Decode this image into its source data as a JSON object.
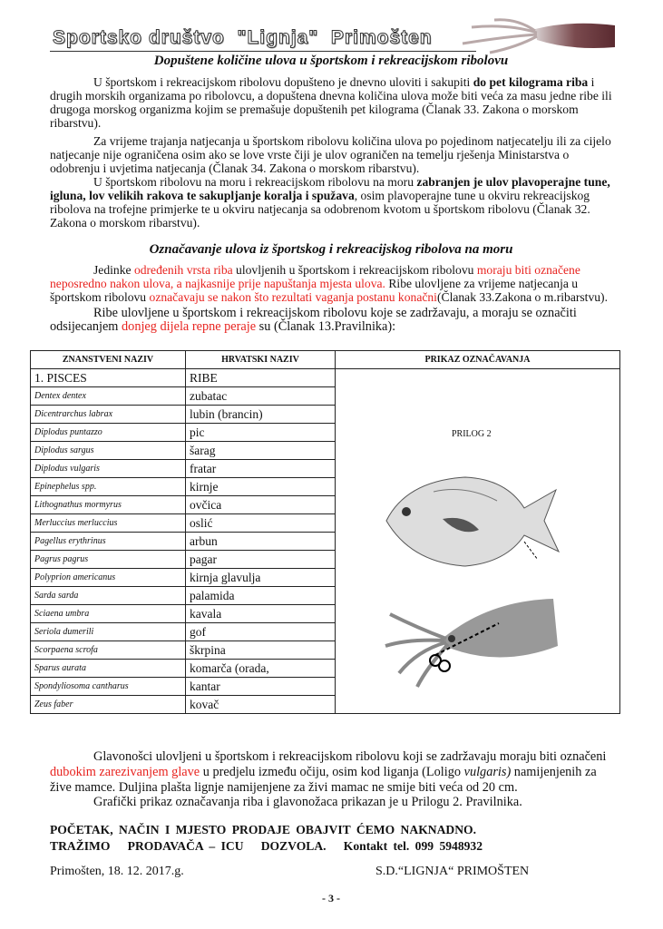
{
  "header": {
    "title": "Sportsko društvo  \"Lignja\"  Primošten",
    "logo": "squid-photo"
  },
  "section1": {
    "title": "Dopuštene količine ulova u športskom i rekreacijskom ribolovu"
  },
  "p1": [
    "U športskom i rekreacijskom ribolovu dopušteno je dnevno uloviti i sakupiti ",
    "do pet kilograma riba",
    " i drugih morskih organizama po ribolovcu, a dopuštena dnevna količina ulova može biti veća za masu jedne ribe ili drugoga morskog organizma kojim se premašuje dopuštenih pet kilograma (Članak 33. Zakona o morskom ribarstvu)."
  ],
  "p2": [
    "Za vrijeme trajanja natjecanja u športskom ribolovu količina ulova po pojedinom natjecatelju ili za cijelo natjecanje nije ograničena osim ako se love vrste čiji je ulov ograničen na temelju rješenja Ministarstva o odobrenju i uvjetima natjecanja (Članak 34. Zakona o morskom ribarstvu)."
  ],
  "p3": [
    "U športskom ribolovu na moru i rekreacijskom ribolovu na moru ",
    "zabranjen je ulov plavoperajne tune, igluna, lov velikih rakova te sakupljanje koralja i spužava",
    ", osim plavoperajne tune u okviru rekreacijskog ribolova na trofejne primjerke te u okviru natjecanja sa odobrenom kvotom u športskom ribolovu (Članak 32. Zakona o morskom ribarstvu)."
  ],
  "section2": {
    "title": "Označavanje ulova iz športskog i rekreacijskog ribolova na moru"
  },
  "p4": [
    "Jedinke ",
    "određenih vrsta riba",
    " ulovljenih u športskom i rekreacijskom ribolovu ",
    "moraju biti označene neposredno nakon ulova, a najkasnije prije napuštanja mjesta ulova.",
    " Ribe ulovljene za vrijeme natjecanja u športskom ribolovu ",
    "označavaju se nakon što rezultati vaganja postanu konačni",
    "(Članak 33.Zakona o m.ribarstvu)."
  ],
  "p5": [
    "Ribe ulovljene u športskom i rekreacijskom ribolovu koje se zadržavaju, a moraju se označiti odsijecanjem ",
    "donjeg dijela repne peraje",
    " su (Članak 13.Pravilnika):"
  ],
  "table": {
    "headers": [
      "ZNANSTVENI NAZIV",
      "HRVATSKI NAZIV",
      "PRIKAZ OZNAČAVANJA"
    ],
    "group": {
      "sci": "1. PISCES",
      "hr": "RIBE"
    },
    "rows": [
      {
        "sci": "Dentex dentex",
        "hr": "zubatac"
      },
      {
        "sci": "Dicentrarchus labrax",
        "hr": "lubin (brancin)"
      },
      {
        "sci": "Diplodus puntazzo",
        "hr": "pic"
      },
      {
        "sci": "Diplodus sargus",
        "hr": "šarag"
      },
      {
        "sci": "Diplodus vulgaris",
        "hr": "fratar"
      },
      {
        "sci": "Epinephelus spp.",
        "hr": "kirnje"
      },
      {
        "sci": "Lithognathus mormyrus",
        "hr": "ovčica"
      },
      {
        "sci": "Merluccius merluccius",
        "hr": "oslić"
      },
      {
        "sci": "Pagellus erythrinus",
        "hr": "arbun"
      },
      {
        "sci": "Pagrus pagrus",
        "hr": "pagar"
      },
      {
        "sci": "Polyprion americanus",
        "hr": "kirnja glavulja"
      },
      {
        "sci": "Sarda sarda",
        "hr": "palamida"
      },
      {
        "sci": "Sciaena umbra",
        "hr": "kavala"
      },
      {
        "sci": "Seriola dumerili",
        "hr": "gof"
      },
      {
        "sci": "Scorpaena scrofa",
        "hr": "škrpina"
      },
      {
        "sci": "Sparus aurata",
        "hr": "komarča (orada,"
      },
      {
        "sci": "Spondyliosoma cantharus",
        "hr": "kantar"
      },
      {
        "sci": "Zeus faber",
        "hr": "kovač"
      }
    ],
    "attachment_label": "PRILOG 2"
  },
  "p6": [
    "Glavonošci ulovljeni u športskom i rekreacijskom ribolovu koji se zadržavaju moraju biti označeni ",
    "dubokim zarezivanjem glave",
    " u predjelu između očiju, osim kod liganja (Loligo ",
    "vulgaris)",
    " namijenjenih za žive mamce. Duljina plašta lignje namijenjene za živi mamac ne smije biti veća od 20 cm."
  ],
  "p7": [
    "Grafički prikaz označavanja riba i glavonožaca prikazan je u Prilogu 2. Pravilnika."
  ],
  "notice": {
    "line1": "POČETAK, NAČIN I MJESTO PRODAJE OBAJVIT ĆEMO NAKNADNO.",
    "line2": "TRAŽIMO   PRODAVAČA – ICU   DOZVOLA.",
    "contact": "Kontakt tel. 099 5948932"
  },
  "footer": {
    "place_date": "Primošten, 18. 12. 2017.g.",
    "signature": "S.D.“LIGNJA“ PRIMOŠTEN",
    "page": "- 3 -"
  },
  "colors": {
    "highlight": "#e8231f"
  }
}
